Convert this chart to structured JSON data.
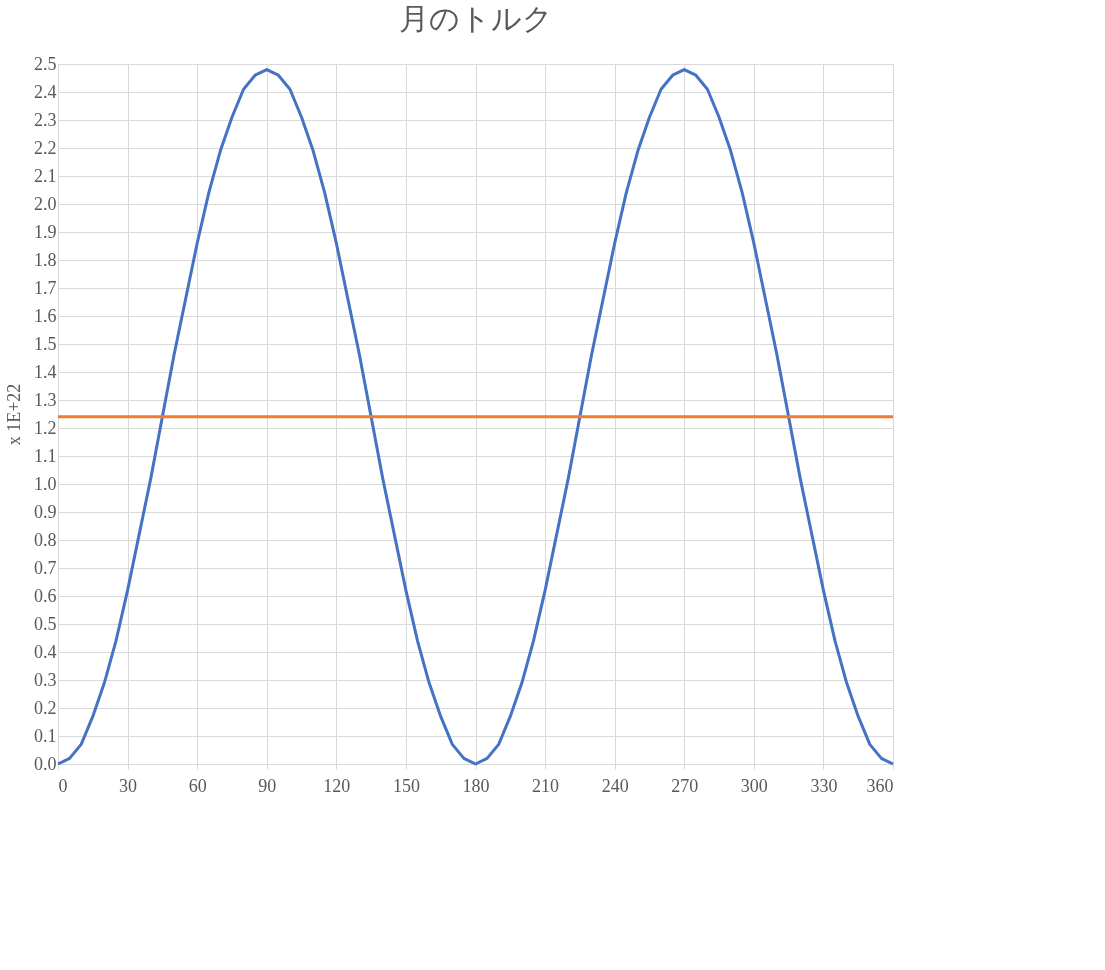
{
  "chart_data": {
    "type": "line",
    "title": "月のトルク",
    "ylabel": "x 1E+22",
    "x": [
      0,
      5,
      10,
      15,
      20,
      25,
      30,
      35,
      40,
      45,
      50,
      55,
      60,
      65,
      70,
      75,
      80,
      85,
      90,
      95,
      100,
      105,
      110,
      115,
      120,
      125,
      130,
      135,
      140,
      145,
      150,
      155,
      160,
      165,
      170,
      175,
      180,
      185,
      190,
      195,
      200,
      205,
      210,
      215,
      220,
      225,
      230,
      235,
      240,
      245,
      250,
      255,
      260,
      265,
      270,
      275,
      280,
      285,
      290,
      295,
      300,
      305,
      310,
      315,
      320,
      325,
      330,
      335,
      340,
      345,
      350,
      355,
      360
    ],
    "series": [
      {
        "color": "#4472c4",
        "values": [
          0,
          0.02,
          0.07,
          0.17,
          0.29,
          0.44,
          0.62,
          0.82,
          1.02,
          1.24,
          1.46,
          1.66,
          1.86,
          2.04,
          2.19,
          2.31,
          2.41,
          2.46,
          2.48,
          2.46,
          2.41,
          2.31,
          2.19,
          2.04,
          1.86,
          1.66,
          1.46,
          1.24,
          1.02,
          0.82,
          0.62,
          0.44,
          0.29,
          0.17,
          0.07,
          0.02,
          0,
          0.02,
          0.07,
          0.17,
          0.29,
          0.44,
          0.62,
          0.82,
          1.02,
          1.24,
          1.46,
          1.66,
          1.86,
          2.04,
          2.19,
          2.31,
          2.41,
          2.46,
          2.48,
          2.46,
          2.41,
          2.31,
          2.19,
          2.04,
          1.86,
          1.66,
          1.46,
          1.24,
          1.02,
          0.82,
          0.62,
          0.44,
          0.29,
          0.17,
          0.07,
          0.02,
          0
        ]
      },
      {
        "color": "#ed7d31",
        "x": [
          0,
          360
        ],
        "values": [
          1.24,
          1.24
        ]
      }
    ],
    "xlim": [
      0,
      360
    ],
    "xticks": [
      0,
      30,
      60,
      90,
      120,
      150,
      180,
      210,
      240,
      270,
      300,
      330,
      360
    ],
    "ylim": [
      0,
      2.5
    ],
    "yticks": [
      {
        "value": 0,
        "label": "0.0"
      },
      0.1,
      0.2,
      0.3,
      0.4,
      0.5,
      0.6,
      0.7,
      0.8,
      0.9,
      {
        "value": 1,
        "label": "1.0"
      },
      1.1,
      1.2,
      1.3,
      1.4,
      1.5,
      1.6,
      1.7,
      1.8,
      1.9,
      {
        "value": 2,
        "label": "2.0"
      },
      2.1,
      2.2,
      2.3,
      2.4,
      2.5
    ],
    "grid": true,
    "marker": "none",
    "line_style": "solid"
  }
}
